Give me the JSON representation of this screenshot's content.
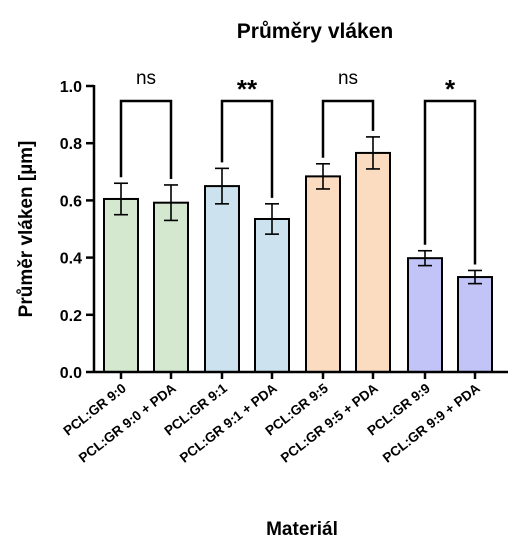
{
  "chart_data": {
    "type": "bar",
    "title": "Průměry vláken",
    "xlabel": "Materiál",
    "ylabel": "Průměr vláken [µm]",
    "ylim": [
      0,
      1.0
    ],
    "yticks": [
      "0.0",
      "0.2",
      "0.4",
      "0.6",
      "0.8",
      "1.0"
    ],
    "categories": [
      "PCL:GR 9:0",
      "PCL:GR 9:0 + PDA",
      "PCL:GR 9:1",
      "PCL:GR 9:1 + PDA",
      "PCL:GR 9:5",
      "PCL:GR 9:5 + PDA",
      "PCL:GR 9:9",
      "PCL:GR 9:9 + PDA"
    ],
    "values": [
      0.605,
      0.592,
      0.65,
      0.535,
      0.684,
      0.766,
      0.398,
      0.332
    ],
    "errors": [
      0.055,
      0.062,
      0.062,
      0.053,
      0.044,
      0.056,
      0.026,
      0.023
    ],
    "colors": [
      "#d3e8cf",
      "#d3e8cf",
      "#cce3ef",
      "#cce3ef",
      "#fbdcc1",
      "#fbdcc1",
      "#c2c4f7",
      "#c2c4f7"
    ],
    "grid": false,
    "significance": [
      {
        "pair": [
          0,
          1
        ],
        "label": "ns"
      },
      {
        "pair": [
          2,
          3
        ],
        "label": "**"
      },
      {
        "pair": [
          4,
          5
        ],
        "label": "ns"
      },
      {
        "pair": [
          6,
          7
        ],
        "label": "*"
      }
    ]
  }
}
